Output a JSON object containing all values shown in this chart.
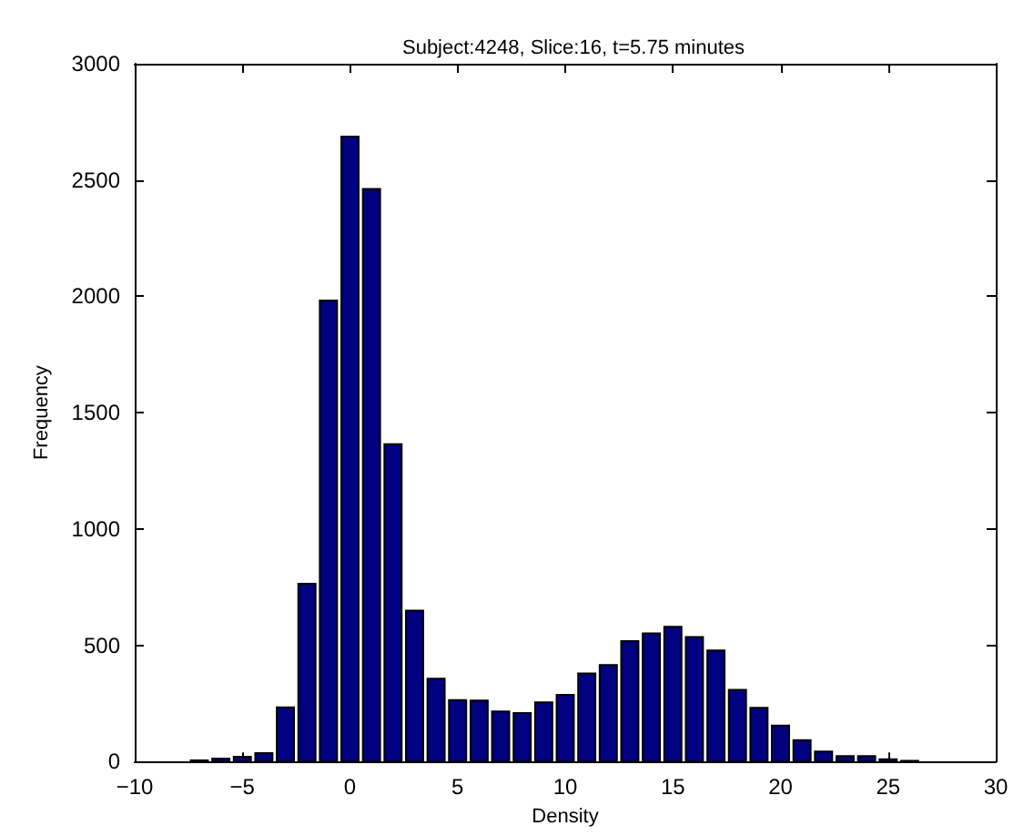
{
  "chart_data": {
    "type": "histogram",
    "title": "Subject:4248, Slice:16, t=5.75 minutes",
    "xlabel": "Density",
    "ylabel": "Frequency",
    "bins": [
      -7.5,
      -6.5,
      -5.5,
      -4.5,
      -3.5,
      -2.5,
      -1.5,
      -0.5,
      0.5,
      1.5,
      2.5,
      3.5,
      4.5,
      5.5,
      6.5,
      7.5,
      8.5,
      9.5,
      10.5,
      11.5,
      12.5,
      13.5,
      14.5,
      15.5,
      16.5,
      17.5,
      18.5,
      19.5,
      20.5,
      21.5,
      22.5,
      23.5,
      24.5,
      25.5,
      26.5
    ],
    "values": [
      5,
      13,
      20,
      36,
      233,
      764,
      1982,
      2687,
      2462,
      1364,
      649,
      356,
      264,
      262,
      215,
      208,
      254,
      287,
      379,
      415,
      518,
      551,
      579,
      535,
      477,
      308,
      231,
      154,
      92,
      43,
      23,
      23,
      10,
      3
    ],
    "color": "#000080",
    "xlim": [
      -10,
      30
    ],
    "xticks": [
      -10,
      -5,
      0,
      5,
      10,
      15,
      20,
      25,
      30
    ],
    "ylim": [
      0,
      3000
    ],
    "yticks": [
      0,
      500,
      1000,
      1500,
      2000,
      2500,
      3000
    ],
    "grid": false
  }
}
